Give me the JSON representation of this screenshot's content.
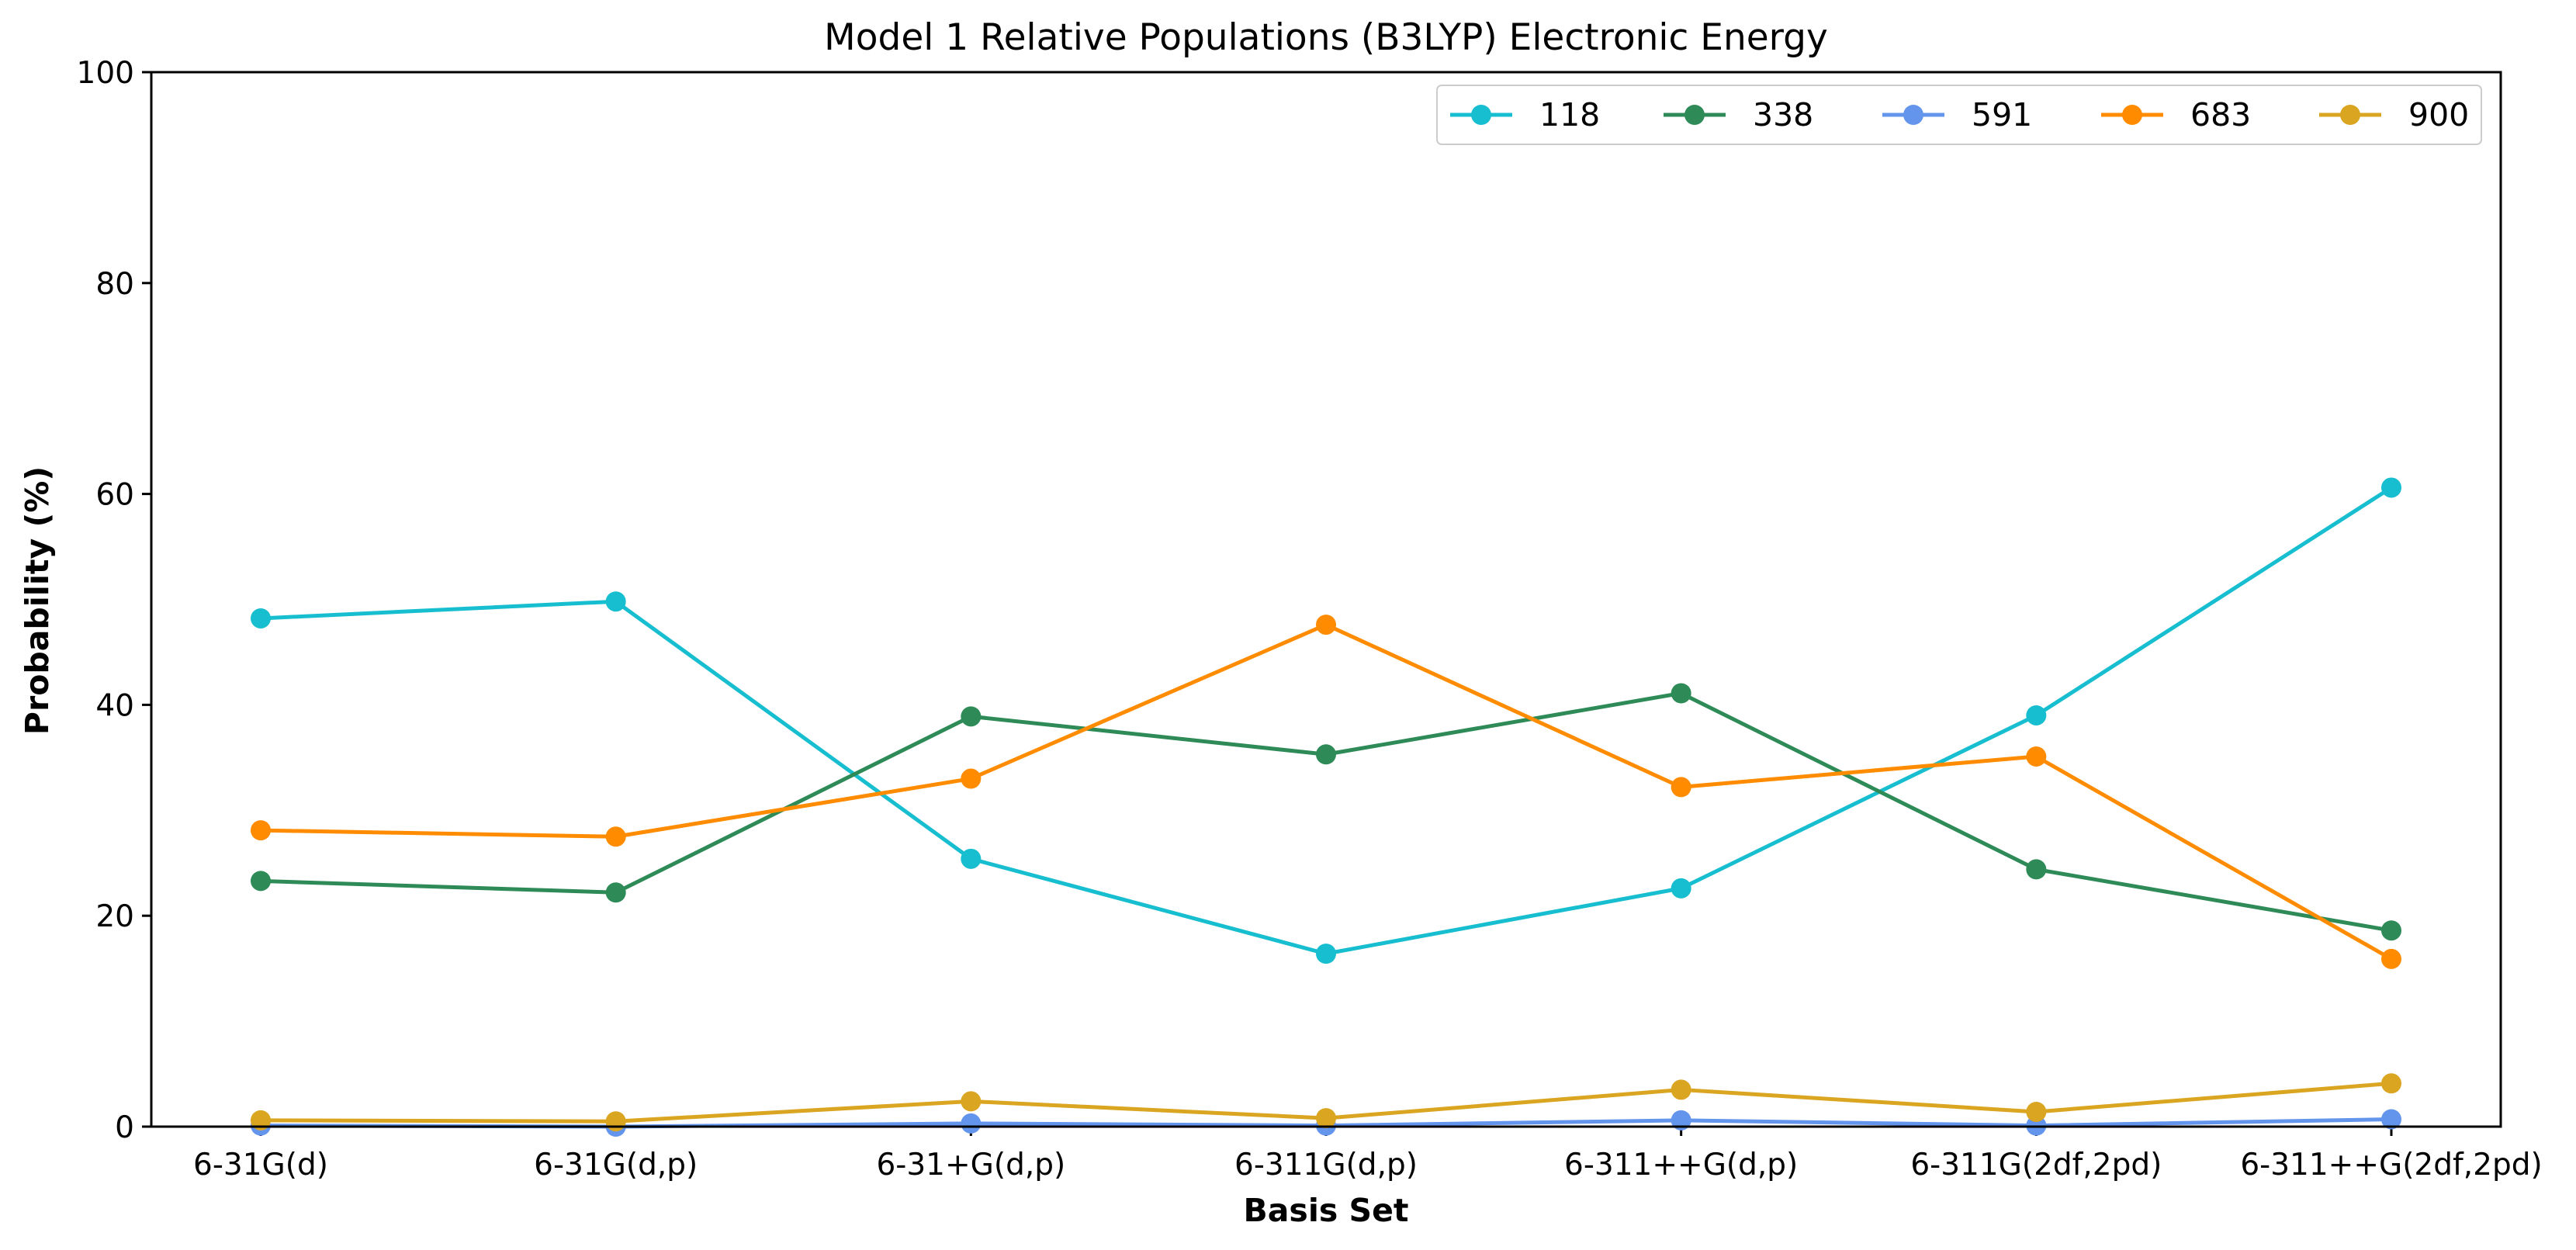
{
  "chart_data": {
    "type": "line",
    "title": "Model 1 Relative Populations (B3LYP) Electronic Energy",
    "xlabel": "Basis Set",
    "ylabel": "Probability (%)",
    "ylim": [
      0,
      100
    ],
    "yticks": [
      "0",
      "20",
      "40",
      "60",
      "80",
      "100"
    ],
    "categories": [
      "6-31G(d)",
      "6-31G(d,p)",
      "6-31+G(d,p)",
      "6-311G(d,p)",
      "6-311++G(d,p)",
      "6-311G(2df,2pd)",
      "6-311++G(2df,2pd)"
    ],
    "legend_position": "top-right",
    "grid": false,
    "series": [
      {
        "name": "118",
        "color": "#17becf",
        "values": [
          48.2,
          49.8,
          25.4,
          16.4,
          22.6,
          39.0,
          60.6
        ]
      },
      {
        "name": "338",
        "color": "#2e8b57",
        "values": [
          23.3,
          22.2,
          38.9,
          35.3,
          41.1,
          24.4,
          18.6
        ]
      },
      {
        "name": "591",
        "color": "#6495ed",
        "values": [
          0.1,
          0.0,
          0.3,
          0.1,
          0.6,
          0.1,
          0.7
        ]
      },
      {
        "name": "683",
        "color": "#ff8c00",
        "values": [
          28.1,
          27.5,
          33.0,
          47.6,
          32.2,
          35.1,
          15.9
        ]
      },
      {
        "name": "900",
        "color": "#daa520",
        "values": [
          0.6,
          0.5,
          2.4,
          0.8,
          3.5,
          1.4,
          4.1
        ]
      }
    ]
  }
}
